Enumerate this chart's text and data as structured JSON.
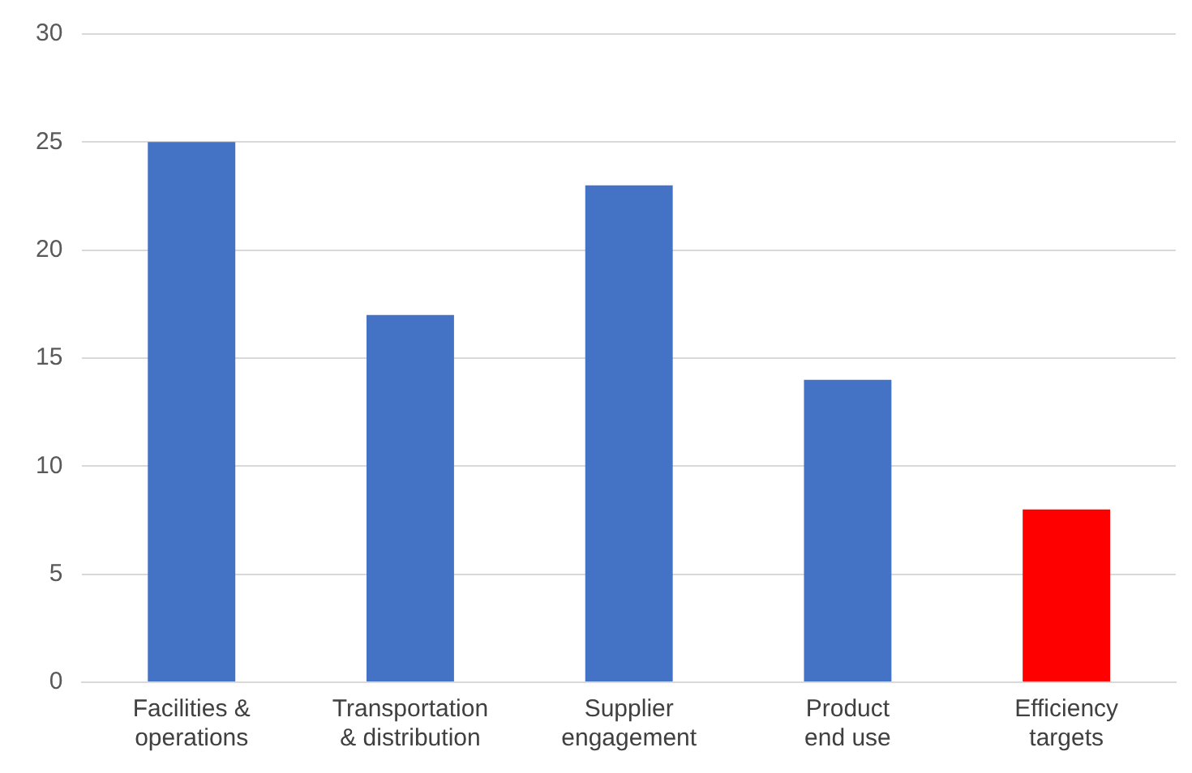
{
  "chart_data": {
    "type": "bar",
    "categories": [
      "Facilities & operations",
      "Transportation & distribution",
      "Supplier engagement",
      "Product end use",
      "Efficiency targets"
    ],
    "values": [
      25,
      17,
      23,
      14,
      8
    ],
    "colors": [
      "#4472c4",
      "#4472c4",
      "#4472c4",
      "#4472c4",
      "#ff0000"
    ],
    "ylim": [
      0,
      30
    ],
    "yticks": [
      0,
      5,
      10,
      15,
      20,
      25,
      30
    ],
    "grid": "y",
    "legend": false
  }
}
